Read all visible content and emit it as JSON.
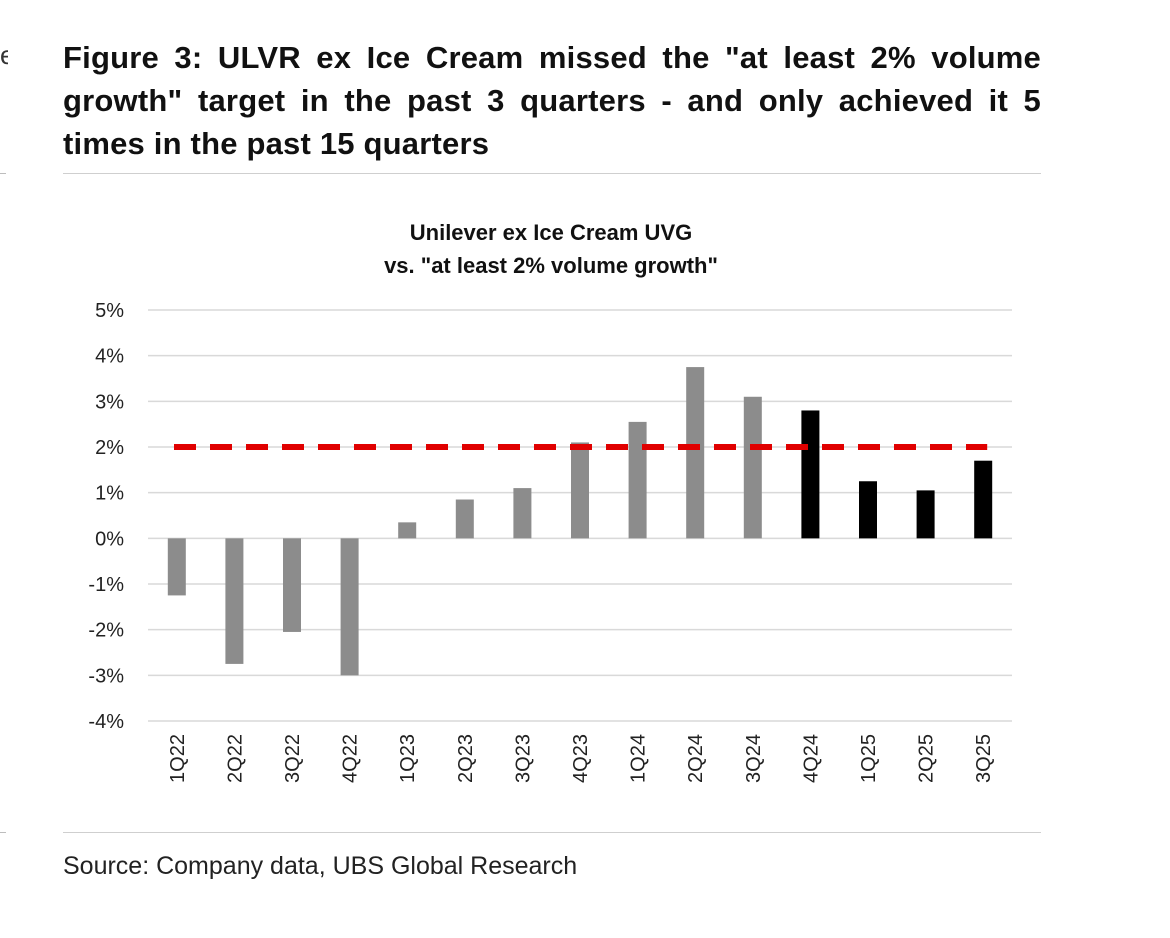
{
  "figure": {
    "title": "Figure 3: ULVR ex Ice Cream missed the \"at least 2% volume growth\" target in the past 3 quarters - and only achieved it 5 times in the past 15 quarters",
    "source": "Source: Company data, UBS Global Research"
  },
  "chart_data": {
    "type": "bar",
    "title_lines": [
      "Unilever ex Ice Cream UVG",
      "vs. \"at least 2% volume growth\""
    ],
    "categories": [
      "1Q22",
      "2Q22",
      "3Q22",
      "4Q22",
      "1Q23",
      "2Q23",
      "3Q23",
      "4Q23",
      "1Q24",
      "2Q24",
      "3Q24",
      "4Q24",
      "1Q25",
      "2Q25",
      "3Q25"
    ],
    "series": [
      {
        "name": "UVG",
        "values": [
          -1.25,
          -2.75,
          -2.05,
          -3.0,
          0.35,
          0.85,
          1.1,
          2.1,
          2.55,
          3.75,
          3.1,
          2.8,
          1.25,
          1.05,
          1.7
        ]
      }
    ],
    "highlighted_from": "4Q24",
    "target": {
      "name": "at least 2% volume growth",
      "value": 2
    },
    "ylim": [
      -4,
      5
    ],
    "yticks": [
      -4,
      -3,
      -2,
      -1,
      0,
      1,
      2,
      3,
      4,
      5
    ],
    "ytick_labels": [
      "-4%",
      "-3%",
      "-2%",
      "-1%",
      "0%",
      "1%",
      "2%",
      "3%",
      "4%",
      "5%"
    ],
    "xlabel": "",
    "ylabel": "",
    "grid": true,
    "colors": {
      "bar": "#8c8c8c",
      "bar_highlight": "#000000",
      "target_line": "#e00000",
      "grid": "#d9d9d9"
    }
  }
}
